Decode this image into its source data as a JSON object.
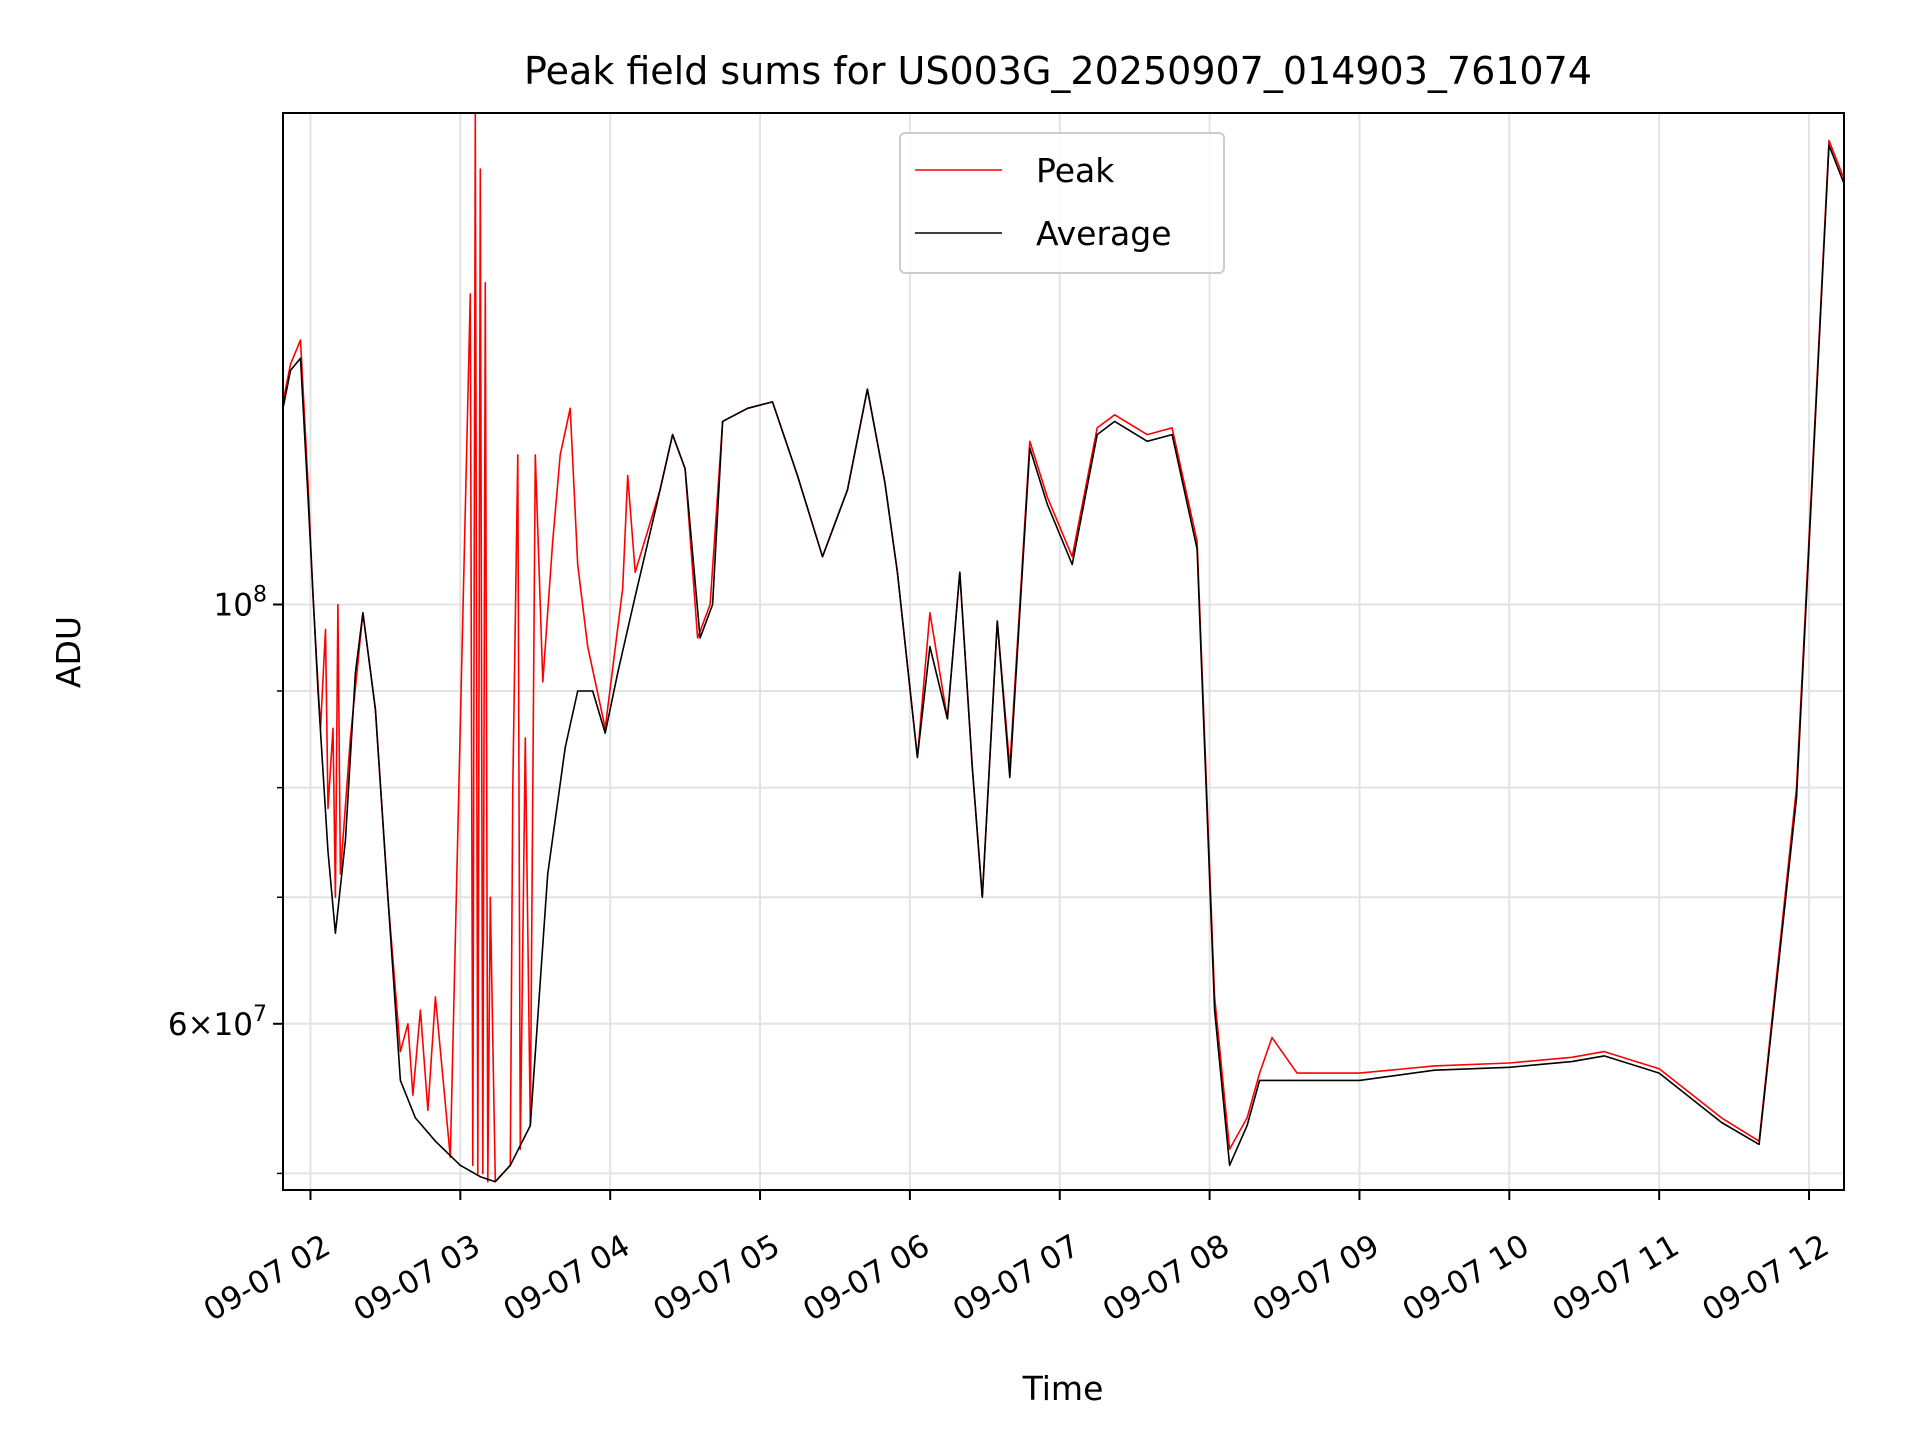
{
  "chart_data": {
    "type": "line",
    "title": "Peak field sums for US003G_20250907_014903_761074",
    "xlabel": "Time",
    "ylabel": "ADU",
    "y_scale": "log",
    "grid": true,
    "legend_position": "top-center",
    "xlim": [
      "2025-09-07 01:49",
      "2025-09-07 12:14"
    ],
    "ylim": [
      49000000,
      182000000
    ],
    "x_ticks": [
      "09-07 02",
      "09-07 03",
      "09-07 04",
      "09-07 05",
      "09-07 06",
      "09-07 07",
      "09-07 08",
      "09-07 09",
      "09-07 10",
      "09-07 11",
      "09-07 12"
    ],
    "y_ticks": [
      {
        "value": 100000000,
        "label": "10^8"
      },
      {
        "value": 60000000,
        "label": "6×10^7"
      }
    ],
    "series": [
      {
        "name": "Peak",
        "color": "#ff0000",
        "points": [
          [
            "2025-09-07 01:49",
            128000000
          ],
          [
            "2025-09-07 01:52",
            134000000
          ],
          [
            "2025-09-07 01:56",
            138000000
          ],
          [
            "2025-09-07 01:59",
            116000000
          ],
          [
            "2025-09-07 02:01",
            101000000
          ],
          [
            "2025-09-07 02:04",
            86000000
          ],
          [
            "2025-09-07 02:06",
            97000000
          ],
          [
            "2025-09-07 02:07",
            78000000
          ],
          [
            "2025-09-07 02:09",
            86000000
          ],
          [
            "2025-09-07 02:10",
            70000000
          ],
          [
            "2025-09-07 02:11",
            100000000
          ],
          [
            "2025-09-07 02:12",
            72000000
          ],
          [
            "2025-09-07 02:16",
            85000000
          ],
          [
            "2025-09-07 02:21",
            99000000
          ],
          [
            "2025-09-07 02:26",
            88000000
          ],
          [
            "2025-09-07 02:31",
            70000000
          ],
          [
            "2025-09-07 02:36",
            58000000
          ],
          [
            "2025-09-07 02:39",
            60000000
          ],
          [
            "2025-09-07 02:41",
            55000000
          ],
          [
            "2025-09-07 02:44",
            61000000
          ],
          [
            "2025-09-07 02:47",
            54000000
          ],
          [
            "2025-09-07 02:50",
            62000000
          ],
          [
            "2025-09-07 02:56",
            51000000
          ],
          [
            "2025-09-07 03:04",
            146000000
          ],
          [
            "2025-09-07 03:05",
            50500000
          ],
          [
            "2025-09-07 03:06",
            182000000
          ],
          [
            "2025-09-07 03:07",
            50000000
          ],
          [
            "2025-09-07 03:08",
            170000000
          ],
          [
            "2025-09-07 03:09",
            50000000
          ],
          [
            "2025-09-07 03:10",
            148000000
          ],
          [
            "2025-09-07 03:11",
            49500000
          ],
          [
            "2025-09-07 03:12",
            70000000
          ],
          [
            "2025-09-07 03:14",
            49500000
          ],
          [
            "2025-09-07 03:20",
            50500000
          ],
          [
            "2025-09-07 03:21",
            80000000
          ],
          [
            "2025-09-07 03:23",
            120000000
          ],
          [
            "2025-09-07 03:24",
            51500000
          ],
          [
            "2025-09-07 03:26",
            85000000
          ],
          [
            "2025-09-07 03:28",
            53000000
          ],
          [
            "2025-09-07 03:30",
            120000000
          ],
          [
            "2025-09-07 03:33",
            91000000
          ],
          [
            "2025-09-07 03:37",
            108000000
          ],
          [
            "2025-09-07 03:40",
            120000000
          ],
          [
            "2025-09-07 03:44",
            127000000
          ],
          [
            "2025-09-07 03:47",
            105000000
          ],
          [
            "2025-09-07 03:51",
            95000000
          ],
          [
            "2025-09-07 03:58",
            86000000
          ],
          [
            "2025-09-07 04:05",
            102000000
          ],
          [
            "2025-09-07 04:07",
            117000000
          ],
          [
            "2025-09-07 04:10",
            104000000
          ],
          [
            "2025-09-07 04:20",
            115000000
          ],
          [
            "2025-09-07 04:25",
            123000000
          ],
          [
            "2025-09-07 04:30",
            118000000
          ],
          [
            "2025-09-07 04:35",
            96000000
          ],
          [
            "2025-09-07 04:40",
            100000000
          ],
          [
            "2025-09-07 04:45",
            125000000
          ],
          [
            "2025-09-07 04:55",
            127000000
          ],
          [
            "2025-09-07 05:05",
            128000000
          ],
          [
            "2025-09-07 05:15",
            117000000
          ],
          [
            "2025-09-07 05:25",
            106000000
          ],
          [
            "2025-09-07 05:35",
            115000000
          ],
          [
            "2025-09-07 05:43",
            130000000
          ],
          [
            "2025-09-07 05:50",
            116000000
          ],
          [
            "2025-09-07 05:55",
            104000000
          ],
          [
            "2025-09-07 06:03",
            83000000
          ],
          [
            "2025-09-07 06:08",
            99000000
          ],
          [
            "2025-09-07 06:15",
            87000000
          ],
          [
            "2025-09-07 06:20",
            104000000
          ],
          [
            "2025-09-07 06:25",
            82000000
          ],
          [
            "2025-09-07 06:29",
            70000000
          ],
          [
            "2025-09-07 06:35",
            98000000
          ],
          [
            "2025-09-07 06:40",
            82000000
          ],
          [
            "2025-09-07 06:48",
            122000000
          ],
          [
            "2025-09-07 06:55",
            114000000
          ],
          [
            "2025-09-07 07:05",
            106000000
          ],
          [
            "2025-09-07 07:15",
            124000000
          ],
          [
            "2025-09-07 07:22",
            126000000
          ],
          [
            "2025-09-07 07:35",
            123000000
          ],
          [
            "2025-09-07 07:45",
            124000000
          ],
          [
            "2025-09-07 07:55",
            108000000
          ],
          [
            "2025-09-07 08:02",
            62000000
          ],
          [
            "2025-09-07 08:08",
            51500000
          ],
          [
            "2025-09-07 08:15",
            53500000
          ],
          [
            "2025-09-07 08:20",
            56500000
          ],
          [
            "2025-09-07 08:25",
            59000000
          ],
          [
            "2025-09-07 08:35",
            56500000
          ],
          [
            "2025-09-07 09:00",
            56500000
          ],
          [
            "2025-09-07 09:30",
            57000000
          ],
          [
            "2025-09-07 10:00",
            57200000
          ],
          [
            "2025-09-07 10:25",
            57600000
          ],
          [
            "2025-09-07 10:38",
            58000000
          ],
          [
            "2025-09-07 11:00",
            56800000
          ],
          [
            "2025-09-07 11:25",
            53500000
          ],
          [
            "2025-09-07 11:40",
            52000000
          ],
          [
            "2025-09-07 11:55",
            80000000
          ],
          [
            "2025-09-07 12:03",
            130000000
          ],
          [
            "2025-09-07 12:08",
            176000000
          ],
          [
            "2025-09-07 12:14",
            168000000
          ]
        ]
      },
      {
        "name": "Average",
        "color": "#000000",
        "points": [
          [
            "2025-09-07 01:49",
            127000000
          ],
          [
            "2025-09-07 01:52",
            133000000
          ],
          [
            "2025-09-07 01:56",
            135000000
          ],
          [
            "2025-09-07 01:59",
            114000000
          ],
          [
            "2025-09-07 02:03",
            90000000
          ],
          [
            "2025-09-07 02:07",
            74000000
          ],
          [
            "2025-09-07 02:10",
            67000000
          ],
          [
            "2025-09-07 02:14",
            75000000
          ],
          [
            "2025-09-07 02:18",
            92000000
          ],
          [
            "2025-09-07 02:21",
            99000000
          ],
          [
            "2025-09-07 02:26",
            88000000
          ],
          [
            "2025-09-07 02:31",
            70000000
          ],
          [
            "2025-09-07 02:36",
            56000000
          ],
          [
            "2025-09-07 02:42",
            53500000
          ],
          [
            "2025-09-07 02:50",
            52000000
          ],
          [
            "2025-09-07 03:00",
            50500000
          ],
          [
            "2025-09-07 03:08",
            49800000
          ],
          [
            "2025-09-07 03:14",
            49500000
          ],
          [
            "2025-09-07 03:20",
            50500000
          ],
          [
            "2025-09-07 03:28",
            53000000
          ],
          [
            "2025-09-07 03:35",
            72000000
          ],
          [
            "2025-09-07 03:42",
            84000000
          ],
          [
            "2025-09-07 03:47",
            90000000
          ],
          [
            "2025-09-07 03:53",
            90000000
          ],
          [
            "2025-09-07 03:58",
            85500000
          ],
          [
            "2025-09-07 04:03",
            92000000
          ],
          [
            "2025-09-07 04:10",
            101000000
          ],
          [
            "2025-09-07 04:18",
            112000000
          ],
          [
            "2025-09-07 04:25",
            123000000
          ],
          [
            "2025-09-07 04:30",
            118000000
          ],
          [
            "2025-09-07 04:36",
            96000000
          ],
          [
            "2025-09-07 04:41",
            100000000
          ],
          [
            "2025-09-07 04:45",
            125000000
          ],
          [
            "2025-09-07 04:55",
            127000000
          ],
          [
            "2025-09-07 05:05",
            128000000
          ],
          [
            "2025-09-07 05:15",
            117000000
          ],
          [
            "2025-09-07 05:25",
            106000000
          ],
          [
            "2025-09-07 05:35",
            115000000
          ],
          [
            "2025-09-07 05:43",
            130000000
          ],
          [
            "2025-09-07 05:50",
            116000000
          ],
          [
            "2025-09-07 05:55",
            104000000
          ],
          [
            "2025-09-07 06:03",
            83000000
          ],
          [
            "2025-09-07 06:08",
            95000000
          ],
          [
            "2025-09-07 06:15",
            87000000
          ],
          [
            "2025-09-07 06:20",
            104000000
          ],
          [
            "2025-09-07 06:25",
            82000000
          ],
          [
            "2025-09-07 06:29",
            70000000
          ],
          [
            "2025-09-07 06:35",
            98000000
          ],
          [
            "2025-09-07 06:40",
            81000000
          ],
          [
            "2025-09-07 06:48",
            121000000
          ],
          [
            "2025-09-07 06:55",
            113000000
          ],
          [
            "2025-09-07 07:05",
            105000000
          ],
          [
            "2025-09-07 07:15",
            123000000
          ],
          [
            "2025-09-07 07:22",
            125000000
          ],
          [
            "2025-09-07 07:35",
            122000000
          ],
          [
            "2025-09-07 07:45",
            123000000
          ],
          [
            "2025-09-07 07:55",
            107000000
          ],
          [
            "2025-09-07 08:02",
            61000000
          ],
          [
            "2025-09-07 08:08",
            50500000
          ],
          [
            "2025-09-07 08:15",
            53000000
          ],
          [
            "2025-09-07 08:20",
            56000000
          ],
          [
            "2025-09-07 08:35",
            56000000
          ],
          [
            "2025-09-07 09:00",
            56000000
          ],
          [
            "2025-09-07 09:30",
            56700000
          ],
          [
            "2025-09-07 10:00",
            56900000
          ],
          [
            "2025-09-07 10:25",
            57300000
          ],
          [
            "2025-09-07 10:38",
            57700000
          ],
          [
            "2025-09-07 11:00",
            56500000
          ],
          [
            "2025-09-07 11:25",
            53200000
          ],
          [
            "2025-09-07 11:40",
            51800000
          ],
          [
            "2025-09-07 11:55",
            79000000
          ],
          [
            "2025-09-07 12:03",
            129000000
          ],
          [
            "2025-09-07 12:08",
            175000000
          ],
          [
            "2025-09-07 12:14",
            167000000
          ]
        ]
      }
    ]
  }
}
